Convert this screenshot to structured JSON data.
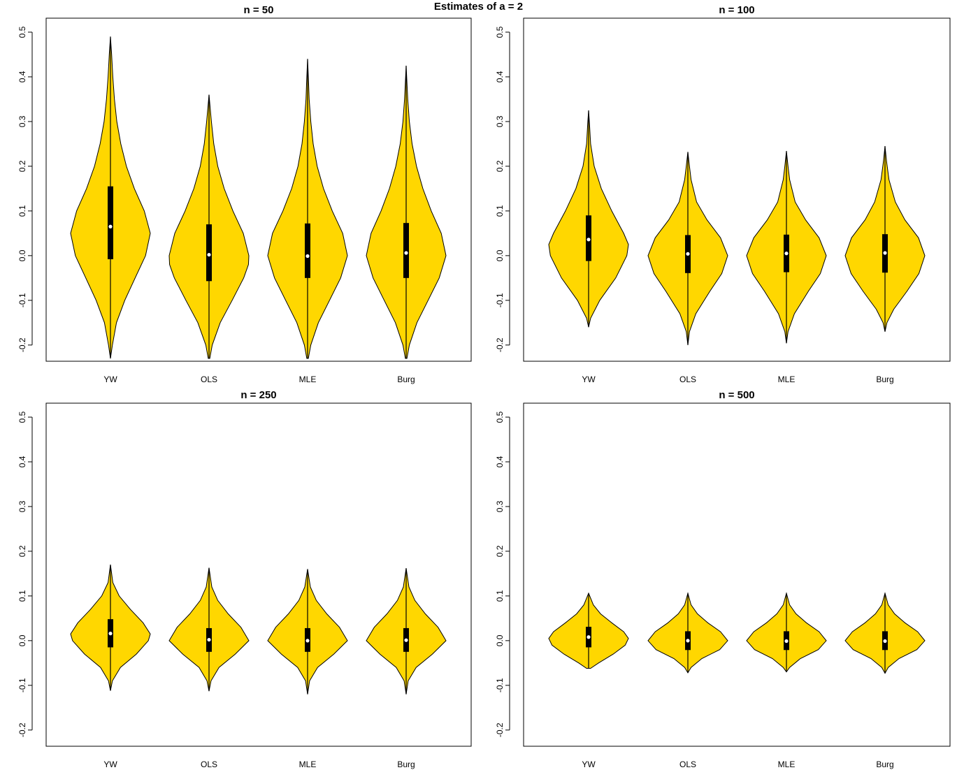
{
  "title": "Estimates of a = 2",
  "colors": {
    "violin_fill": "#FFD700",
    "outline": "#000000",
    "median_marker": "#FFFFFF"
  },
  "chart_data": [
    {
      "type": "violin",
      "title": "n = 50",
      "xlabel": "",
      "ylabel": "",
      "ylim": [
        -0.23,
        0.525
      ],
      "yticks": [
        -0.2,
        -0.1,
        0.0,
        0.1,
        0.2,
        0.3,
        0.4,
        0.5
      ],
      "ytick_labels": [
        "-0.2",
        "-0.1",
        "0.0",
        "0.1",
        "0.2",
        "0.3",
        "0.4",
        "0.5"
      ],
      "categories": [
        "YW",
        "OLS",
        "MLE",
        "Burg"
      ],
      "series": [
        {
          "min": -0.23,
          "max": 0.525,
          "q1": -0.008,
          "median": 0.065,
          "q3": 0.155,
          "whisker_low": -0.23,
          "whisker_high": 0.49,
          "density": [
            [
              -0.23,
              0
            ],
            [
              -0.2,
              0.05
            ],
            [
              -0.15,
              0.15
            ],
            [
              -0.1,
              0.36
            ],
            [
              -0.05,
              0.62
            ],
            [
              0.0,
              0.88
            ],
            [
              0.05,
              1.0
            ],
            [
              0.1,
              0.85
            ],
            [
              0.15,
              0.6
            ],
            [
              0.2,
              0.4
            ],
            [
              0.25,
              0.26
            ],
            [
              0.3,
              0.16
            ],
            [
              0.35,
              0.1
            ],
            [
              0.4,
              0.06
            ],
            [
              0.45,
              0.03
            ],
            [
              0.49,
              0
            ]
          ]
        },
        {
          "min": -0.23,
          "max": 0.36,
          "q1": -0.057,
          "median": 0.002,
          "q3": 0.07,
          "whisker_low": -0.23,
          "whisker_high": 0.36,
          "density": [
            [
              -0.23,
              0.02
            ],
            [
              -0.2,
              0.08
            ],
            [
              -0.15,
              0.28
            ],
            [
              -0.1,
              0.58
            ],
            [
              -0.05,
              0.87
            ],
            [
              -0.02,
              0.99
            ],
            [
              0.0,
              1.0
            ],
            [
              0.05,
              0.86
            ],
            [
              0.1,
              0.6
            ],
            [
              0.15,
              0.38
            ],
            [
              0.2,
              0.22
            ],
            [
              0.25,
              0.12
            ],
            [
              0.3,
              0.06
            ],
            [
              0.36,
              0
            ]
          ]
        },
        {
          "min": -0.23,
          "max": 0.44,
          "q1": -0.05,
          "median": -0.001,
          "q3": 0.072,
          "whisker_low": -0.23,
          "whisker_high": 0.44,
          "density": [
            [
              -0.23,
              0.02
            ],
            [
              -0.2,
              0.08
            ],
            [
              -0.15,
              0.27
            ],
            [
              -0.1,
              0.55
            ],
            [
              -0.05,
              0.83
            ],
            [
              0.0,
              1.0
            ],
            [
              0.05,
              0.88
            ],
            [
              0.1,
              0.62
            ],
            [
              0.15,
              0.4
            ],
            [
              0.2,
              0.24
            ],
            [
              0.25,
              0.14
            ],
            [
              0.3,
              0.08
            ],
            [
              0.35,
              0.04
            ],
            [
              0.4,
              0.02
            ],
            [
              0.44,
              0
            ]
          ]
        },
        {
          "min": -0.23,
          "max": 0.425,
          "q1": -0.05,
          "median": 0.006,
          "q3": 0.073,
          "whisker_low": -0.23,
          "whisker_high": 0.425,
          "density": [
            [
              -0.23,
              0.02
            ],
            [
              -0.2,
              0.08
            ],
            [
              -0.15,
              0.27
            ],
            [
              -0.1,
              0.55
            ],
            [
              -0.05,
              0.83
            ],
            [
              0.0,
              1.0
            ],
            [
              0.05,
              0.88
            ],
            [
              0.1,
              0.63
            ],
            [
              0.15,
              0.42
            ],
            [
              0.2,
              0.26
            ],
            [
              0.25,
              0.15
            ],
            [
              0.3,
              0.08
            ],
            [
              0.35,
              0.04
            ],
            [
              0.425,
              0
            ]
          ]
        }
      ]
    },
    {
      "type": "violin",
      "title": "n = 100",
      "xlabel": "",
      "ylabel": "",
      "ylim": [
        -0.23,
        0.525
      ],
      "yticks": [
        -0.2,
        -0.1,
        0.0,
        0.1,
        0.2,
        0.3,
        0.4,
        0.5
      ],
      "ytick_labels": [
        "-0.2",
        "-0.1",
        "0.0",
        "0.1",
        "0.2",
        "0.3",
        "0.4",
        "0.5"
      ],
      "categories": [
        "YW",
        "OLS",
        "MLE",
        "Burg"
      ],
      "series": [
        {
          "min": -0.16,
          "max": 0.325,
          "q1": -0.012,
          "median": 0.036,
          "q3": 0.09,
          "whisker_low": -0.16,
          "whisker_high": 0.325,
          "density": [
            [
              -0.16,
              0
            ],
            [
              -0.14,
              0.05
            ],
            [
              -0.1,
              0.28
            ],
            [
              -0.05,
              0.68
            ],
            [
              0.0,
              0.96
            ],
            [
              0.025,
              1.0
            ],
            [
              0.05,
              0.88
            ],
            [
              0.1,
              0.58
            ],
            [
              0.15,
              0.32
            ],
            [
              0.2,
              0.14
            ],
            [
              0.25,
              0.05
            ],
            [
              0.3,
              0.02
            ],
            [
              0.325,
              0
            ]
          ]
        },
        {
          "min": -0.2,
          "max": 0.232,
          "q1": -0.039,
          "median": 0.004,
          "q3": 0.046,
          "whisker_low": -0.2,
          "whisker_high": 0.232,
          "density": [
            [
              -0.2,
              0
            ],
            [
              -0.17,
              0.04
            ],
            [
              -0.13,
              0.2
            ],
            [
              -0.08,
              0.55
            ],
            [
              -0.04,
              0.85
            ],
            [
              0.0,
              1.0
            ],
            [
              0.04,
              0.82
            ],
            [
              0.08,
              0.48
            ],
            [
              0.12,
              0.22
            ],
            [
              0.17,
              0.08
            ],
            [
              0.2,
              0.04
            ],
            [
              0.232,
              0
            ]
          ]
        },
        {
          "min": -0.196,
          "max": 0.234,
          "q1": -0.037,
          "median": 0.005,
          "q3": 0.047,
          "whisker_low": -0.196,
          "whisker_high": 0.234,
          "density": [
            [
              -0.196,
              0
            ],
            [
              -0.17,
              0.04
            ],
            [
              -0.13,
              0.2
            ],
            [
              -0.08,
              0.55
            ],
            [
              -0.04,
              0.85
            ],
            [
              0.0,
              1.0
            ],
            [
              0.04,
              0.82
            ],
            [
              0.08,
              0.48
            ],
            [
              0.12,
              0.22
            ],
            [
              0.17,
              0.08
            ],
            [
              0.2,
              0.04
            ],
            [
              0.234,
              0
            ]
          ]
        },
        {
          "min": -0.17,
          "max": 0.245,
          "q1": -0.038,
          "median": 0.006,
          "q3": 0.048,
          "whisker_low": -0.17,
          "whisker_high": 0.245,
          "density": [
            [
              -0.17,
              0
            ],
            [
              -0.15,
              0.05
            ],
            [
              -0.12,
              0.22
            ],
            [
              -0.08,
              0.55
            ],
            [
              -0.04,
              0.85
            ],
            [
              0.0,
              1.0
            ],
            [
              0.04,
              0.84
            ],
            [
              0.08,
              0.5
            ],
            [
              0.12,
              0.26
            ],
            [
              0.17,
              0.1
            ],
            [
              0.21,
              0.04
            ],
            [
              0.245,
              0
            ]
          ]
        }
      ]
    },
    {
      "type": "violin",
      "title": "n = 250",
      "xlabel": "",
      "ylabel": "",
      "ylim": [
        -0.23,
        0.525
      ],
      "yticks": [
        -0.2,
        -0.1,
        0.0,
        0.1,
        0.2,
        0.3,
        0.4,
        0.5
      ],
      "ytick_labels": [
        "-0.2",
        "-0.1",
        "0.0",
        "0.1",
        "0.2",
        "0.3",
        "0.4",
        "0.5"
      ],
      "categories": [
        "YW",
        "OLS",
        "MLE",
        "Burg"
      ],
      "series": [
        {
          "min": -0.112,
          "max": 0.17,
          "q1": -0.015,
          "median": 0.016,
          "q3": 0.048,
          "whisker_low": -0.112,
          "whisker_high": 0.17,
          "density": [
            [
              -0.112,
              0
            ],
            [
              -0.09,
              0.05
            ],
            [
              -0.06,
              0.25
            ],
            [
              -0.03,
              0.65
            ],
            [
              0.0,
              0.95
            ],
            [
              0.015,
              1.0
            ],
            [
              0.04,
              0.82
            ],
            [
              0.07,
              0.5
            ],
            [
              0.1,
              0.22
            ],
            [
              0.13,
              0.06
            ],
            [
              0.17,
              0
            ]
          ]
        },
        {
          "min": -0.113,
          "max": 0.163,
          "q1": -0.025,
          "median": 0.002,
          "q3": 0.028,
          "whisker_low": -0.113,
          "whisker_high": 0.163,
          "density": [
            [
              -0.113,
              0
            ],
            [
              -0.09,
              0.05
            ],
            [
              -0.06,
              0.25
            ],
            [
              -0.03,
              0.66
            ],
            [
              0.0,
              1.0
            ],
            [
              0.03,
              0.8
            ],
            [
              0.06,
              0.48
            ],
            [
              0.09,
              0.22
            ],
            [
              0.12,
              0.07
            ],
            [
              0.163,
              0
            ]
          ]
        },
        {
          "min": -0.12,
          "max": 0.16,
          "q1": -0.025,
          "median": 0.0,
          "q3": 0.028,
          "whisker_low": -0.12,
          "whisker_high": 0.16,
          "density": [
            [
              -0.12,
              0
            ],
            [
              -0.09,
              0.05
            ],
            [
              -0.06,
              0.25
            ],
            [
              -0.03,
              0.66
            ],
            [
              0.0,
              1.0
            ],
            [
              0.03,
              0.8
            ],
            [
              0.06,
              0.48
            ],
            [
              0.09,
              0.22
            ],
            [
              0.12,
              0.07
            ],
            [
              0.16,
              0
            ]
          ]
        },
        {
          "min": -0.12,
          "max": 0.162,
          "q1": -0.025,
          "median": 0.001,
          "q3": 0.028,
          "whisker_low": -0.12,
          "whisker_high": 0.162,
          "density": [
            [
              -0.12,
              0
            ],
            [
              -0.09,
              0.05
            ],
            [
              -0.06,
              0.25
            ],
            [
              -0.03,
              0.66
            ],
            [
              0.0,
              1.0
            ],
            [
              0.03,
              0.8
            ],
            [
              0.06,
              0.48
            ],
            [
              0.09,
              0.22
            ],
            [
              0.12,
              0.07
            ],
            [
              0.162,
              0
            ]
          ]
        }
      ]
    },
    {
      "type": "violin",
      "title": "n = 500",
      "xlabel": "",
      "ylabel": "",
      "ylim": [
        -0.23,
        0.525
      ],
      "yticks": [
        -0.2,
        -0.1,
        0.0,
        0.1,
        0.2,
        0.3,
        0.4,
        0.5
      ],
      "ytick_labels": [
        "-0.2",
        "-0.1",
        "0.0",
        "0.1",
        "0.2",
        "0.3",
        "0.4",
        "0.5"
      ],
      "categories": [
        "YW",
        "OLS",
        "MLE",
        "Burg"
      ],
      "series": [
        {
          "min": -0.062,
          "max": 0.106,
          "q1": -0.015,
          "median": 0.008,
          "q3": 0.031,
          "whisker_low": -0.062,
          "whisker_high": 0.106,
          "density": [
            [
              -0.062,
              0.05
            ],
            [
              -0.05,
              0.25
            ],
            [
              -0.03,
              0.62
            ],
            [
              -0.01,
              0.92
            ],
            [
              0.005,
              1.0
            ],
            [
              0.02,
              0.88
            ],
            [
              0.04,
              0.58
            ],
            [
              0.06,
              0.3
            ],
            [
              0.08,
              0.12
            ],
            [
              0.106,
              0
            ]
          ]
        },
        {
          "min": -0.072,
          "max": 0.106,
          "q1": -0.021,
          "median": 0.0,
          "q3": 0.021,
          "whisker_low": -0.072,
          "whisker_high": 0.106,
          "density": [
            [
              -0.072,
              0
            ],
            [
              -0.06,
              0.08
            ],
            [
              -0.04,
              0.35
            ],
            [
              -0.02,
              0.8
            ],
            [
              0.0,
              1.0
            ],
            [
              0.02,
              0.82
            ],
            [
              0.04,
              0.5
            ],
            [
              0.06,
              0.24
            ],
            [
              0.08,
              0.08
            ],
            [
              0.106,
              0
            ]
          ]
        },
        {
          "min": -0.07,
          "max": 0.106,
          "q1": -0.021,
          "median": -0.001,
          "q3": 0.021,
          "whisker_low": -0.07,
          "whisker_high": 0.106,
          "density": [
            [
              -0.07,
              0
            ],
            [
              -0.06,
              0.08
            ],
            [
              -0.04,
              0.35
            ],
            [
              -0.02,
              0.8
            ],
            [
              0.0,
              1.0
            ],
            [
              0.02,
              0.82
            ],
            [
              0.04,
              0.5
            ],
            [
              0.06,
              0.24
            ],
            [
              0.08,
              0.08
            ],
            [
              0.106,
              0
            ]
          ]
        },
        {
          "min": -0.073,
          "max": 0.106,
          "q1": -0.021,
          "median": -0.001,
          "q3": 0.021,
          "whisker_low": -0.073,
          "whisker_high": 0.106,
          "density": [
            [
              -0.073,
              0
            ],
            [
              -0.06,
              0.08
            ],
            [
              -0.04,
              0.35
            ],
            [
              -0.02,
              0.8
            ],
            [
              0.0,
              1.0
            ],
            [
              0.02,
              0.82
            ],
            [
              0.04,
              0.5
            ],
            [
              0.06,
              0.24
            ],
            [
              0.08,
              0.08
            ],
            [
              0.106,
              0
            ]
          ]
        }
      ]
    }
  ]
}
